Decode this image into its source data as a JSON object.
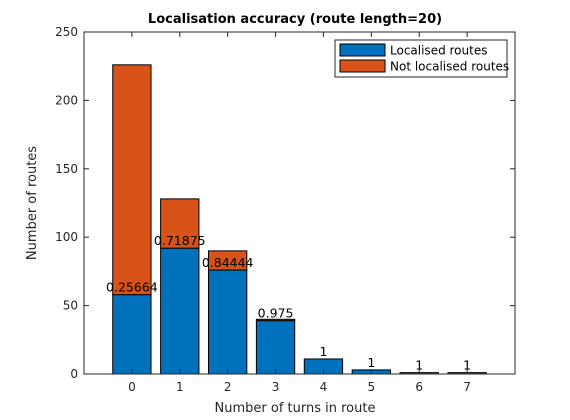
{
  "chart_data": {
    "type": "bar",
    "stacked": true,
    "title": "Localisation accuracy (route length=20)",
    "xlabel": "Number of turns in route",
    "ylabel": "Number of routes",
    "categories": [
      "0",
      "1",
      "2",
      "3",
      "4",
      "5",
      "6",
      "7"
    ],
    "xlim": [
      -1,
      8
    ],
    "ylim": [
      0,
      250
    ],
    "yticks": [
      0,
      50,
      100,
      150,
      200,
      250
    ],
    "grid": false,
    "legend_position": "top-right",
    "series": [
      {
        "name": "Localised routes",
        "color": "#0072BD",
        "values": [
          58,
          92,
          76,
          39,
          11,
          3,
          1,
          1
        ]
      },
      {
        "name": "Not localised routes",
        "color": "#D95319",
        "values": [
          168,
          36,
          14,
          1,
          0,
          0,
          0,
          0
        ]
      }
    ],
    "data_labels": [
      "0.25664",
      "0.71875",
      "0.84444",
      "0.975",
      "1",
      "1",
      "1",
      "1"
    ]
  }
}
